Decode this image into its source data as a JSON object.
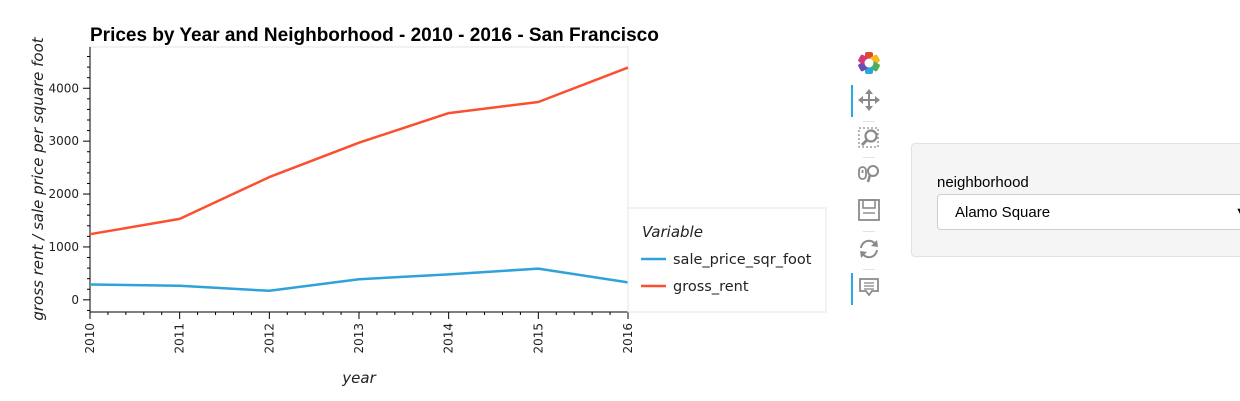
{
  "chart_data": {
    "type": "line",
    "title": "Prices by Year and Neighborhood - 2010 - 2016 - San Francisco",
    "xlabel": "year",
    "ylabel": "gross rent / sale price per square foot",
    "x": [
      2010,
      2011,
      2012,
      2013,
      2014,
      2015,
      2016
    ],
    "xlim": [
      2010,
      2016
    ],
    "ylim": [
      -230,
      4780
    ],
    "yticks": [
      0,
      1000,
      2000,
      3000,
      4000
    ],
    "grid": false,
    "legend_title": "Variable",
    "legend_position": "right",
    "series": [
      {
        "name": "sale_price_sqr_foot",
        "color": "#30a2da",
        "values": [
          290,
          265,
          170,
          390,
          480,
          590,
          330
        ]
      },
      {
        "name": "gross_rent",
        "color": "#fc4f30",
        "values": [
          1240,
          1530,
          2320,
          2970,
          3530,
          3740,
          4390
        ]
      }
    ]
  },
  "toolbar": {
    "tools": [
      "bokeh-logo-icon",
      "pan-icon",
      "box-zoom-icon",
      "wheel-zoom-icon",
      "save-icon",
      "reset-icon",
      "hover-icon"
    ]
  },
  "widget": {
    "label": "neighborhood",
    "selected": "Alamo Square"
  }
}
